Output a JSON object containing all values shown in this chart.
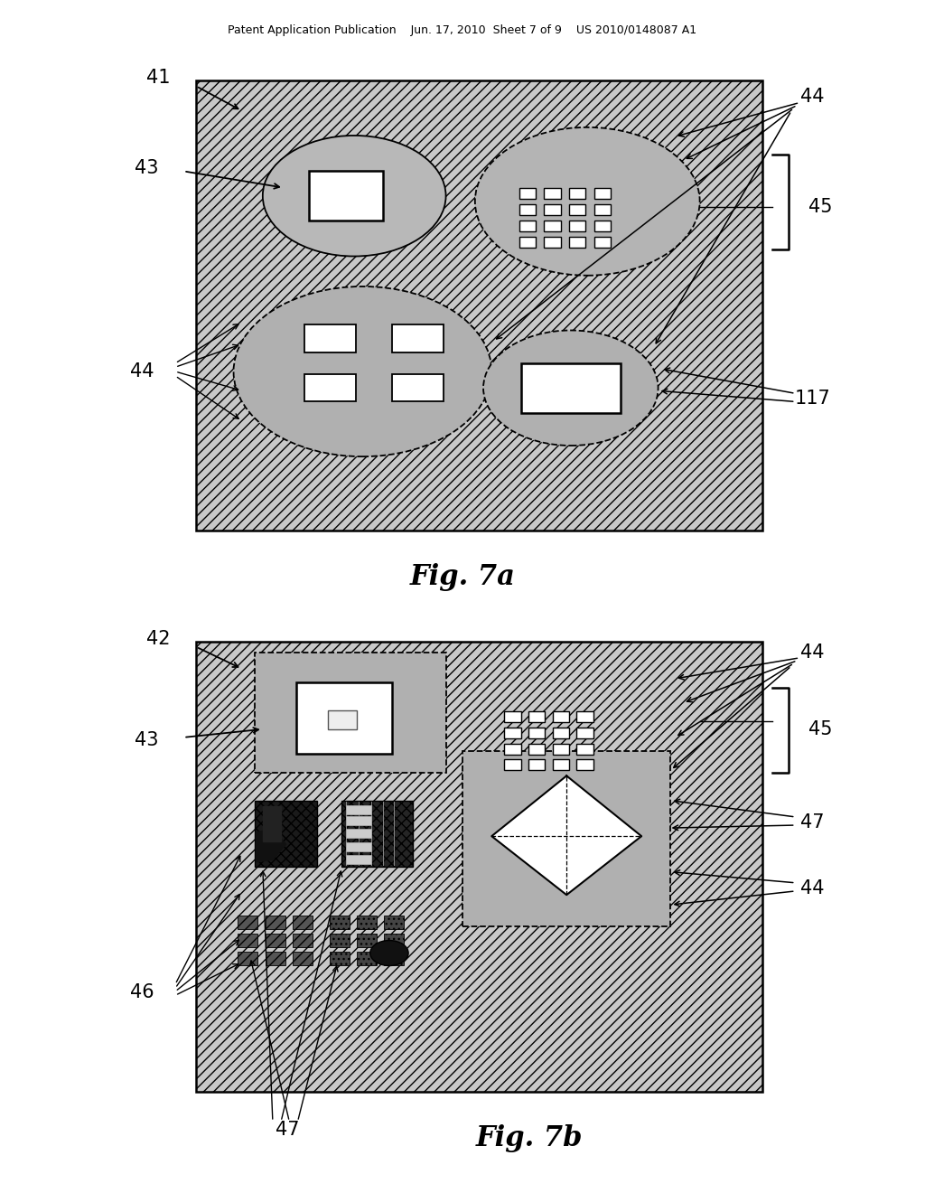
{
  "bg_color": "#ffffff",
  "header_text": "Patent Application Publication    Jun. 17, 2010  Sheet 7 of 9    US 2010/0148087 A1",
  "fig7a_label": "Fig. 7a",
  "fig7b_label": "Fig. 7b",
  "label_41": "41",
  "label_42": "42",
  "label_43": "43",
  "label_44": "44",
  "label_45": "45",
  "label_117": "117",
  "label_46": "46",
  "label_47": "47"
}
